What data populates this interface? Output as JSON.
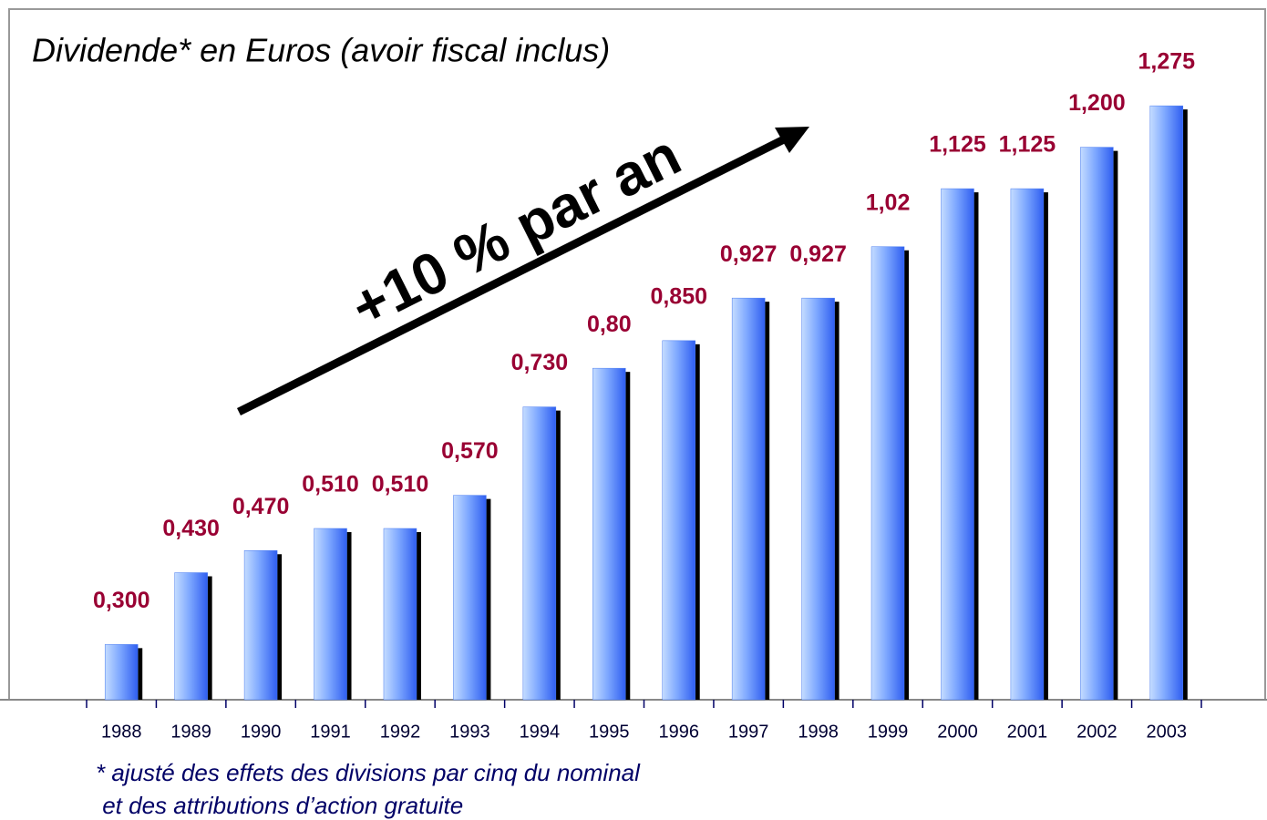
{
  "chart_data": {
    "type": "bar",
    "title": "Dividende* en Euros (avoir fiscal inclus)",
    "annotation": "+10 % par an",
    "footnote": [
      "* ajusté des effets des divisions par cinq du nominal",
      " et des attributions d’action gratuite"
    ],
    "categories": [
      "1988",
      "1989",
      "1990",
      "1991",
      "1992",
      "1993",
      "1994",
      "1995",
      "1996",
      "1997",
      "1998",
      "1999",
      "2000",
      "2001",
      "2002",
      "2003"
    ],
    "values": [
      0.3,
      0.43,
      0.47,
      0.51,
      0.51,
      0.57,
      0.73,
      0.8,
      0.85,
      0.927,
      0.927,
      1.02,
      1.125,
      1.125,
      1.2,
      1.275
    ],
    "value_labels": [
      "0,300",
      "0,430",
      "0,470",
      "0,510",
      "0,510",
      "0,570",
      "0,730",
      "0,80",
      "0,850",
      "0,927",
      "0,927",
      "1,02",
      "1,125",
      "1,125",
      "1,200",
      "1,275"
    ],
    "color": "#4a7cf0",
    "ylim": [
      0.2,
      1.45
    ]
  }
}
